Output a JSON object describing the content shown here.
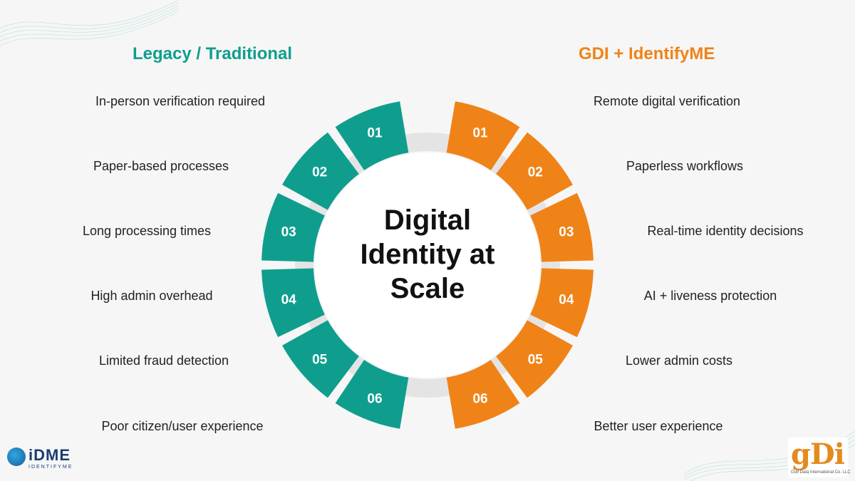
{
  "headings": {
    "legacy": "Legacy / Traditional",
    "gdi": "GDI + IdentifyME"
  },
  "center_title_lines": [
    "Digital",
    "Identity at",
    "Scale"
  ],
  "left_items": [
    "In-person verification required",
    "Paper-based processes",
    "Long processing times",
    "High admin overhead",
    "Limited fraud detection",
    "Poor citizen/user experience"
  ],
  "right_items": [
    "Remote digital verification",
    "Paperless workflows",
    "Real-time identity decisions",
    "AI + liveness protection",
    "Lower admin costs",
    "Better user experience"
  ],
  "segment_numbers": [
    "01",
    "02",
    "03",
    "04",
    "05",
    "06"
  ],
  "colors": {
    "teal": "#0f9e8e",
    "orange": "#f08317",
    "ring_gray": "#e4e4e4",
    "background": "#f6f6f6"
  },
  "logos": {
    "idme": {
      "word": "iDME",
      "sub": "IDENTIFYME"
    },
    "gdi": {
      "word": "gDi",
      "sub": "Gulf Data International Co. LLC"
    }
  }
}
